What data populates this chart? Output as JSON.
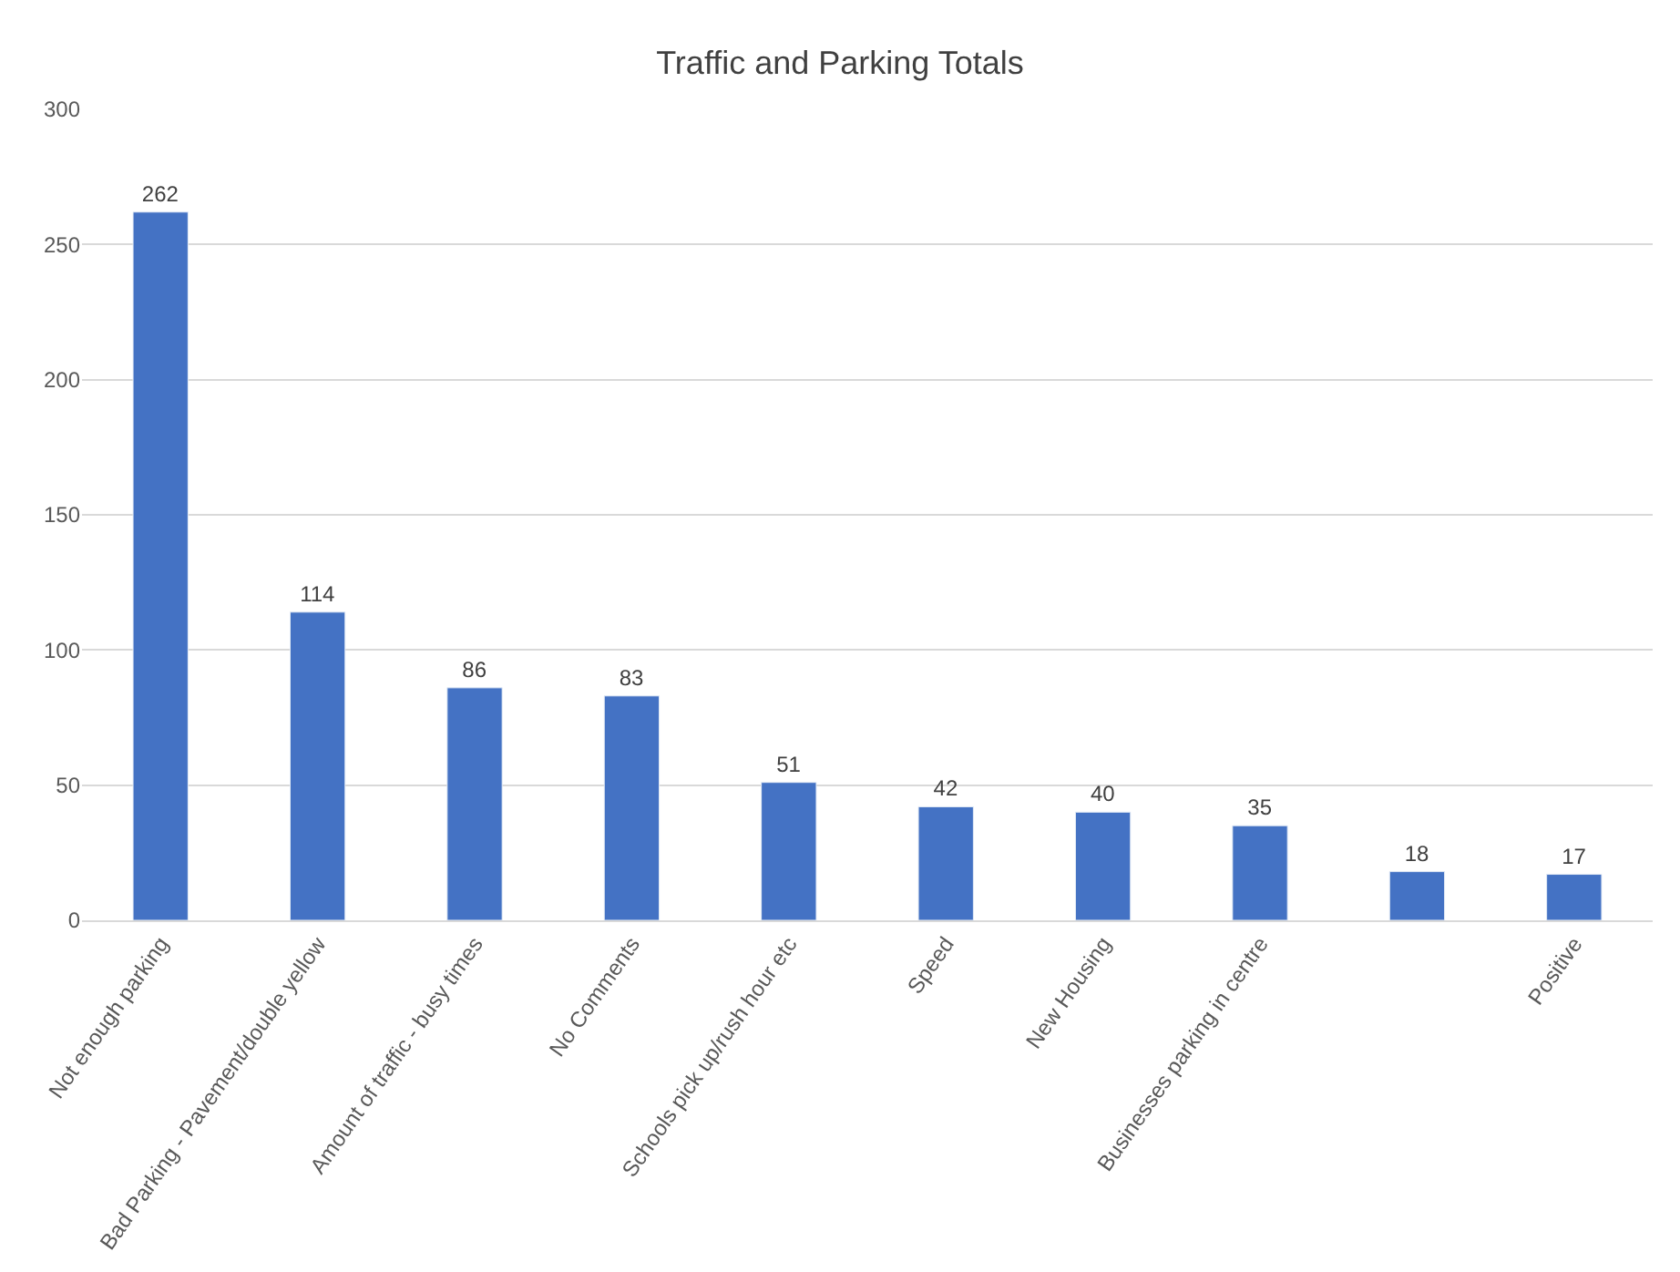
{
  "chart_data": {
    "type": "bar",
    "title": "Traffic and Parking Totals",
    "categories": [
      "Not enough parking",
      "Bad Parking - Pavement/double yellow",
      "Amount of traffic - busy times",
      "No Comments",
      "Schools pick up/rush hour etc",
      "Speed",
      "New Housing",
      "Businesses parking in centre",
      null,
      "Positive"
    ],
    "values": [
      262,
      114,
      86,
      83,
      51,
      42,
      40,
      35,
      18,
      17
    ],
    "color": "#4472c4",
    "ylim": [
      0,
      300
    ],
    "yticks": [
      0,
      50,
      100,
      150,
      200,
      250,
      300
    ],
    "grid": "y",
    "data_labels": true
  }
}
